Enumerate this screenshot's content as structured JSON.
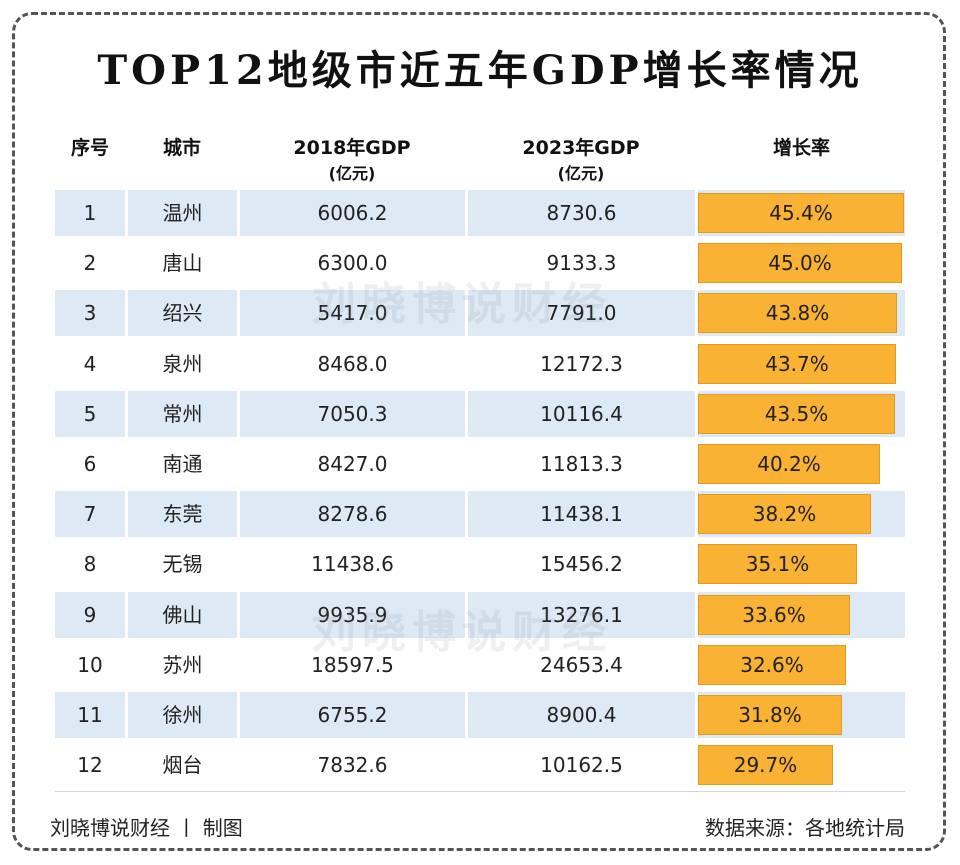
{
  "title": "TOP12地级市近五年GDP增长率情况",
  "headers": {
    "index": "序号",
    "city": "城市",
    "gdp2018": "2018年GDP",
    "gdp2018_unit": "(亿元)",
    "gdp2023": "2023年GDP",
    "gdp2023_unit": "(亿元)",
    "growth": "增长率"
  },
  "watermark": "刘晓博说财经",
  "footer": {
    "credit": "刘晓博说财经 丨 制图",
    "source": "数据来源：各地统计局"
  },
  "colors": {
    "bar": "#f9b233",
    "row_shade": "#dde9f5"
  },
  "chart_data": {
    "type": "table",
    "rows": [
      {
        "rank": "1",
        "city": "温州",
        "gdp2018": "6006.2",
        "gdp2023": "8730.6",
        "growth": 45.4,
        "growth_label": "45.4%"
      },
      {
        "rank": "2",
        "city": "唐山",
        "gdp2018": "6300.0",
        "gdp2023": "9133.3",
        "growth": 45.0,
        "growth_label": "45.0%"
      },
      {
        "rank": "3",
        "city": "绍兴",
        "gdp2018": "5417.0",
        "gdp2023": "7791.0",
        "growth": 43.8,
        "growth_label": "43.8%"
      },
      {
        "rank": "4",
        "city": "泉州",
        "gdp2018": "8468.0",
        "gdp2023": "12172.3",
        "growth": 43.7,
        "growth_label": "43.7%"
      },
      {
        "rank": "5",
        "city": "常州",
        "gdp2018": "7050.3",
        "gdp2023": "10116.4",
        "growth": 43.5,
        "growth_label": "43.5%"
      },
      {
        "rank": "6",
        "city": "南通",
        "gdp2018": "8427.0",
        "gdp2023": "11813.3",
        "growth": 40.2,
        "growth_label": "40.2%"
      },
      {
        "rank": "7",
        "city": "东莞",
        "gdp2018": "8278.6",
        "gdp2023": "11438.1",
        "growth": 38.2,
        "growth_label": "38.2%"
      },
      {
        "rank": "8",
        "city": "无锡",
        "gdp2018": "11438.6",
        "gdp2023": "15456.2",
        "growth": 35.1,
        "growth_label": "35.1%"
      },
      {
        "rank": "9",
        "city": "佛山",
        "gdp2018": "9935.9",
        "gdp2023": "13276.1",
        "growth": 33.6,
        "growth_label": "33.6%"
      },
      {
        "rank": "10",
        "city": "苏州",
        "gdp2018": "18597.5",
        "gdp2023": "24653.4",
        "growth": 32.6,
        "growth_label": "32.6%"
      },
      {
        "rank": "11",
        "city": "徐州",
        "gdp2018": "6755.2",
        "gdp2023": "8900.4",
        "growth": 31.8,
        "growth_label": "31.8%"
      },
      {
        "rank": "12",
        "city": "烟台",
        "gdp2018": "7832.6",
        "gdp2023": "10162.5",
        "growth": 29.7,
        "growth_label": "29.7%"
      }
    ]
  }
}
